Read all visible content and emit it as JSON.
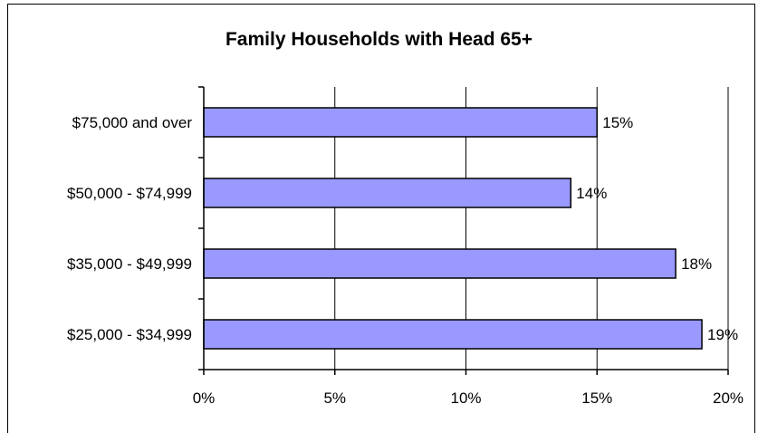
{
  "chart_data": {
    "type": "bar",
    "orientation": "horizontal",
    "title": "Family Households with Head 65+",
    "categories": [
      "$75,000 and over",
      "$50,000 - $74,999",
      "$35,000 - $49,999",
      "$25,000 - $34,999"
    ],
    "values": [
      15,
      14,
      18,
      19
    ],
    "data_labels": [
      "15%",
      "14%",
      "18%",
      "19%"
    ],
    "xlim": [
      0,
      20
    ],
    "x_ticks": [
      0,
      5,
      10,
      15,
      20
    ],
    "x_tick_labels": [
      "0%",
      "5%",
      "10%",
      "15%",
      "20%"
    ],
    "grid": "vertical",
    "legend": "none",
    "bar_color": "#9999ff",
    "bar_edge_color": "#000000"
  }
}
